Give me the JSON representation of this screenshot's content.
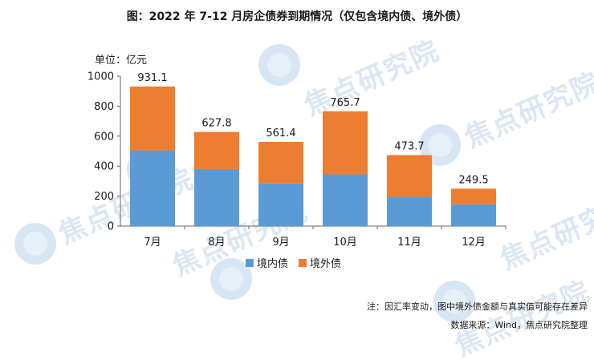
{
  "title": "图：2022 年 7-12 月房企债券到期情况（仅包含境内债、境外债）",
  "unit_label": "单位：亿元",
  "watermark": "焦点研究院",
  "footnote": "注：因汇率变动，图中境外债金额与真实值可能存在差异",
  "source": "数据来源：Wind，焦点研究院整理",
  "colors": {
    "domestic": "#5b9bd5",
    "overseas": "#ed7d31",
    "axis": "#666666"
  },
  "chart_data": {
    "type": "bar",
    "stacked": true,
    "categories": [
      "7月",
      "8月",
      "9月",
      "10月",
      "11月",
      "12月"
    ],
    "series": [
      {
        "name": "境内债",
        "values": [
          505,
          380,
          285,
          345,
          195,
          145
        ]
      },
      {
        "name": "境外债",
        "values": [
          426.1,
          247.8,
          276.4,
          420.7,
          278.7,
          104.5
        ]
      }
    ],
    "totals": [
      "931.1",
      "627.8",
      "561.4",
      "765.7",
      "473.7",
      "249.5"
    ],
    "ylim": [
      0,
      1000
    ],
    "yticks": [
      0,
      200,
      400,
      600,
      800,
      1000
    ],
    "grid": false,
    "legend": "bottom"
  }
}
